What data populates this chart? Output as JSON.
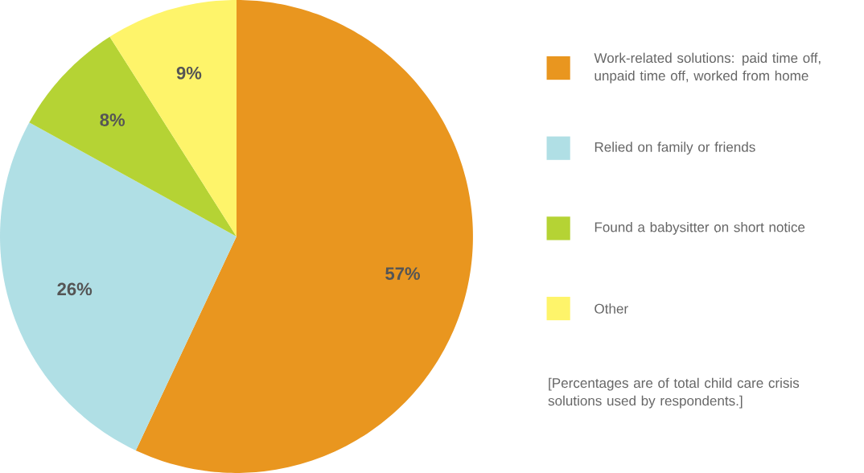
{
  "chart_data": {
    "type": "pie",
    "categories": [
      "Work-related solutions: paid time off, unpaid time off, worked from home",
      "Relied on family or friends",
      "Found a babysitter on short notice",
      "Other"
    ],
    "values": [
      57,
      26,
      8,
      9
    ],
    "colors": [
      "#e9961f",
      "#b0dfe5",
      "#b5d334",
      "#fef46a"
    ],
    "value_labels": [
      "57%",
      "26%",
      "8%",
      "9%"
    ],
    "legend": "right",
    "annotations": [
      "[Percentages are of total child care crisis solutions used by respondents.]"
    ]
  }
}
